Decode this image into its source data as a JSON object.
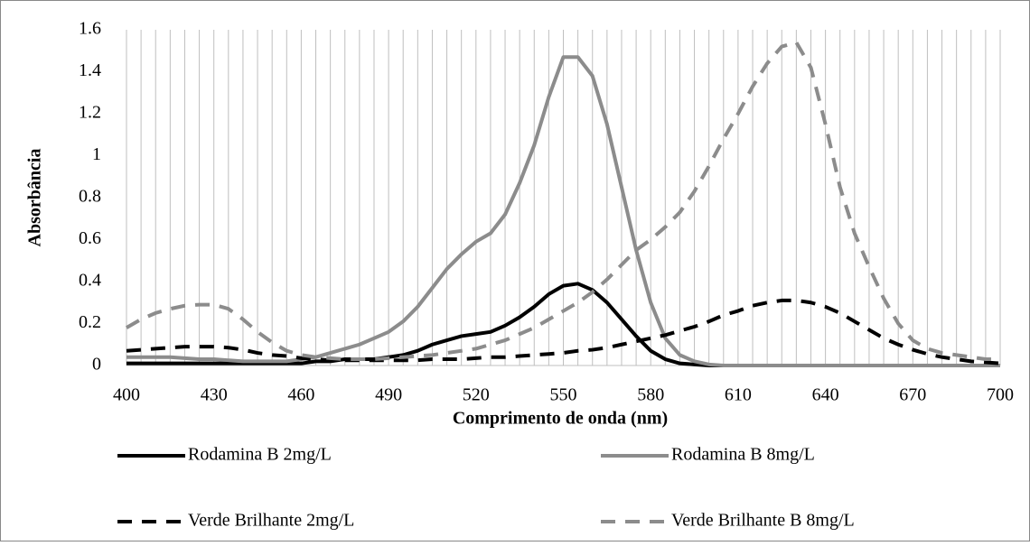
{
  "chart_data": {
    "type": "line",
    "xlabel": "Comprimento de onda (nm)",
    "ylabel": "Absorbância",
    "x": [
      400,
      405,
      410,
      415,
      420,
      425,
      430,
      435,
      440,
      445,
      450,
      455,
      460,
      465,
      470,
      475,
      480,
      485,
      490,
      495,
      500,
      505,
      510,
      515,
      520,
      525,
      530,
      535,
      540,
      545,
      550,
      555,
      560,
      565,
      570,
      575,
      580,
      585,
      590,
      595,
      600,
      605,
      610,
      615,
      620,
      625,
      630,
      635,
      640,
      645,
      650,
      655,
      660,
      665,
      670,
      675,
      680,
      685,
      690,
      695,
      700
    ],
    "series": [
      {
        "name": "Rodamina B 2mg/L",
        "color": "#000000",
        "dashed": false,
        "values": [
          0.01,
          0.01,
          0.01,
          0.01,
          0.01,
          0.01,
          0.01,
          0.01,
          0.01,
          0.01,
          0.01,
          0.01,
          0.01,
          0.02,
          0.02,
          0.03,
          0.03,
          0.03,
          0.04,
          0.05,
          0.07,
          0.1,
          0.12,
          0.14,
          0.15,
          0.16,
          0.19,
          0.23,
          0.28,
          0.34,
          0.38,
          0.39,
          0.36,
          0.3,
          0.22,
          0.14,
          0.07,
          0.03,
          0.01,
          0.005,
          0,
          0,
          0,
          0,
          0,
          0,
          0,
          0,
          0,
          0,
          0,
          0,
          0,
          0,
          0,
          0,
          0,
          0,
          0,
          0,
          0
        ]
      },
      {
        "name": "Rodamina B 8mg/L",
        "color": "#8c8c8c",
        "dashed": false,
        "values": [
          0.04,
          0.04,
          0.04,
          0.04,
          0.035,
          0.03,
          0.03,
          0.025,
          0.02,
          0.02,
          0.02,
          0.02,
          0.03,
          0.04,
          0.06,
          0.08,
          0.1,
          0.13,
          0.16,
          0.21,
          0.28,
          0.37,
          0.46,
          0.53,
          0.59,
          0.63,
          0.72,
          0.87,
          1.05,
          1.28,
          1.47,
          1.47,
          1.38,
          1.15,
          0.85,
          0.55,
          0.3,
          0.13,
          0.05,
          0.02,
          0.005,
          0,
          0,
          0,
          0,
          0,
          0,
          0,
          0,
          0,
          0,
          0,
          0,
          0,
          0,
          0,
          0,
          0,
          0,
          0,
          0
        ]
      },
      {
        "name": "Verde Brilhante 2mg/L",
        "color": "#000000",
        "dashed": true,
        "values": [
          0.07,
          0.075,
          0.08,
          0.085,
          0.09,
          0.09,
          0.09,
          0.085,
          0.075,
          0.06,
          0.05,
          0.045,
          0.035,
          0.03,
          0.025,
          0.025,
          0.025,
          0.025,
          0.025,
          0.025,
          0.025,
          0.03,
          0.03,
          0.03,
          0.035,
          0.04,
          0.04,
          0.045,
          0.05,
          0.055,
          0.06,
          0.07,
          0.075,
          0.085,
          0.1,
          0.115,
          0.13,
          0.145,
          0.165,
          0.185,
          0.21,
          0.24,
          0.26,
          0.285,
          0.3,
          0.31,
          0.31,
          0.3,
          0.28,
          0.25,
          0.21,
          0.17,
          0.13,
          0.1,
          0.075,
          0.055,
          0.04,
          0.03,
          0.02,
          0.015,
          0.01
        ]
      },
      {
        "name": "Verde Brilhante B 8mg/L",
        "color": "#8c8c8c",
        "dashed": true,
        "values": [
          0.18,
          0.22,
          0.25,
          0.27,
          0.285,
          0.29,
          0.29,
          0.27,
          0.22,
          0.16,
          0.11,
          0.07,
          0.05,
          0.04,
          0.035,
          0.03,
          0.03,
          0.03,
          0.035,
          0.04,
          0.045,
          0.05,
          0.06,
          0.07,
          0.08,
          0.1,
          0.12,
          0.15,
          0.18,
          0.22,
          0.26,
          0.3,
          0.35,
          0.41,
          0.48,
          0.55,
          0.6,
          0.66,
          0.73,
          0.83,
          0.95,
          1.08,
          1.2,
          1.33,
          1.44,
          1.52,
          1.54,
          1.42,
          1.15,
          0.85,
          0.63,
          0.47,
          0.32,
          0.2,
          0.12,
          0.08,
          0.06,
          0.05,
          0.04,
          0.03,
          0.03
        ]
      }
    ],
    "xlim": [
      400,
      700
    ],
    "xticks": [
      400,
      430,
      460,
      490,
      520,
      550,
      580,
      610,
      640,
      670,
      700
    ],
    "xminorticks": [
      400,
      405,
      410,
      415,
      420,
      425,
      430,
      435,
      440,
      445,
      450,
      455,
      460,
      465,
      470,
      475,
      480,
      485,
      490,
      495,
      500,
      505,
      510,
      515,
      520,
      525,
      530,
      535,
      540,
      545,
      550,
      555,
      560,
      565,
      570,
      575,
      580,
      585,
      590,
      595,
      600,
      605,
      610,
      615,
      620,
      625,
      630,
      635,
      640,
      645,
      650,
      655,
      660,
      665,
      670,
      675,
      680,
      685,
      690,
      695,
      700
    ],
    "ylim": [
      0,
      1.6
    ],
    "yticks": [
      0,
      0.2,
      0.4,
      0.6,
      0.8,
      1,
      1.2,
      1.4,
      1.6
    ],
    "grid": "x",
    "legend": "bottom"
  }
}
